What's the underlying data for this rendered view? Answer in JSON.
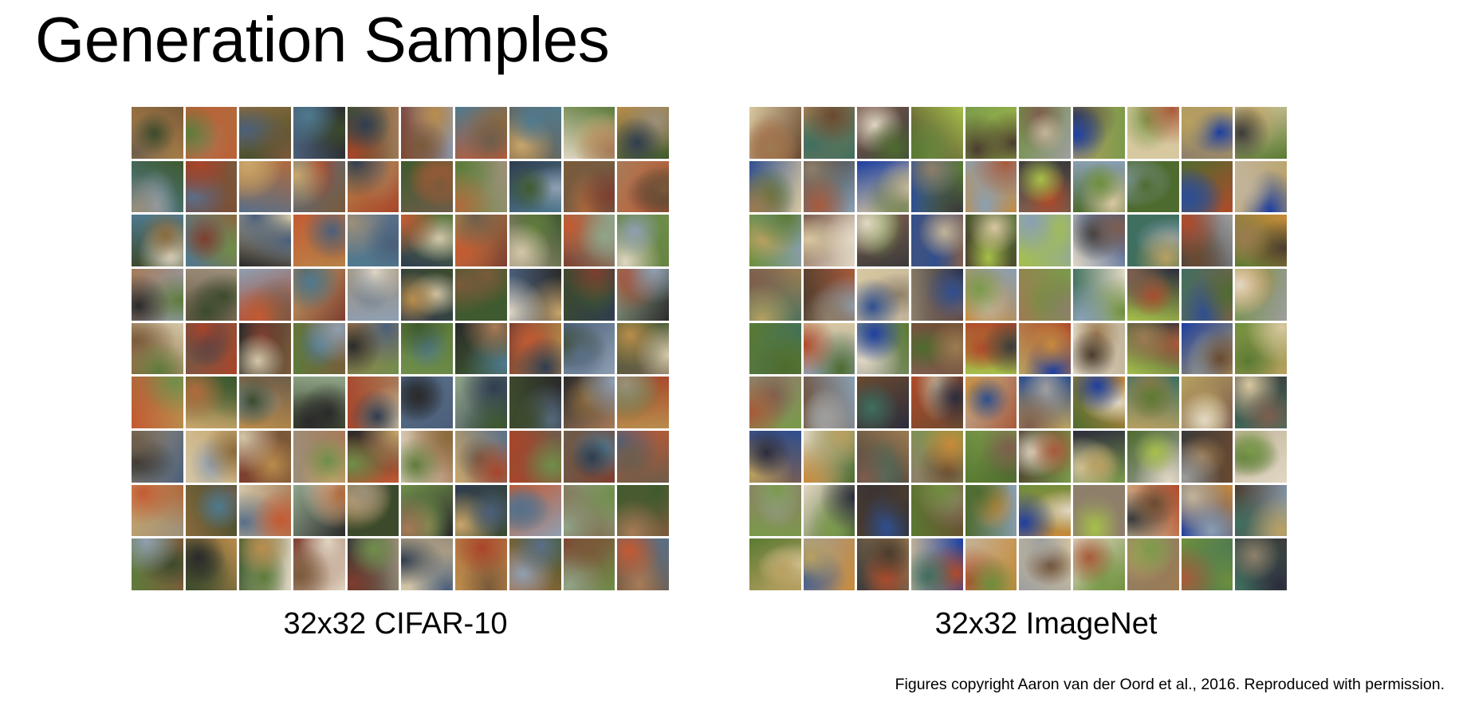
{
  "slide": {
    "title": "Generation Samples",
    "figures": [
      {
        "caption": "32x32 CIFAR-10",
        "grid": {
          "rows": 9,
          "cols": 10
        },
        "palette": [
          "#3e5a2e",
          "#8a6a3c",
          "#6d5d4a",
          "#a8452a",
          "#4b5f7a",
          "#b98c4c",
          "#5e7b3b",
          "#2f3d4f",
          "#9c8f7a",
          "#c45a32",
          "#4f7a8f",
          "#7a5a3a",
          "#d3c7a8",
          "#3c4a2c",
          "#8f9fb2",
          "#b06a3c",
          "#2a2a2a",
          "#6f8e4a",
          "#a77b58",
          "#5a6f88",
          "#c9a66b",
          "#7e3e2f",
          "#91a58a",
          "#e0d6c2"
        ]
      },
      {
        "caption": "32x32 ImageNet",
        "grid": {
          "rows": 9,
          "cols": 10
        },
        "palette": [
          "#5a7a32",
          "#9c7b52",
          "#4a3c2e",
          "#8e7f6a",
          "#2f4f8f",
          "#c2b49a",
          "#6e8f3c",
          "#a85a3a",
          "#3a3a3a",
          "#d8c8a0",
          "#7a9a4a",
          "#b04a2a",
          "#1e3fa0",
          "#8aa0b4",
          "#c88a3a",
          "#4e6b2f",
          "#9e9e9e",
          "#6a4a30",
          "#e2d8c4",
          "#3f6f5f",
          "#b8a060",
          "#2c2c3c",
          "#a6c04a",
          "#7e5e4e"
        ]
      }
    ],
    "credit": "Figures copyright Aaron van der Oord et al., 2016. Reproduced with permission."
  }
}
